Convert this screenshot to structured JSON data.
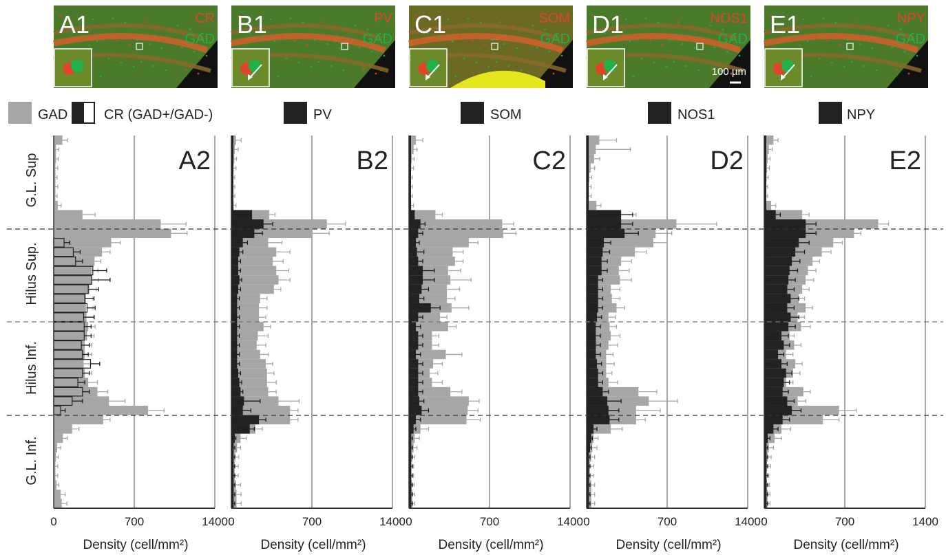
{
  "legend": {
    "gad": "GAD",
    "cr": "CR (GAD+/GAD-)",
    "pv": "PV",
    "som": "SOM",
    "nos1": "NOS1",
    "npy": "NPY"
  },
  "colors": {
    "gad": "#a6a6a6",
    "marker": "#222222",
    "marker_error": "#1a1a1a",
    "gad_error": "#a6a6a6",
    "micro_red": "#e0452a",
    "micro_green": "#1fb14a",
    "micro_yellow": "#e6e61e"
  },
  "region_labels": [
    "G.L. Sup",
    "Hilus Sup.",
    "Hilus Inf.",
    "G.L. Inf."
  ],
  "micrographs": [
    {
      "label": "A1",
      "marker": "CR",
      "counter": "GAD"
    },
    {
      "label": "B1",
      "marker": "PV",
      "counter": "GAD"
    },
    {
      "label": "C1",
      "marker": "SOM",
      "counter": "GAD"
    },
    {
      "label": "D1",
      "marker": "NOS1",
      "counter": "GAD",
      "scale": "100 µm"
    },
    {
      "label": "E1",
      "marker": "NPY",
      "counter": "GAD"
    }
  ],
  "chart_data": [
    {
      "type": "bar",
      "orientation": "horizontal",
      "panel": "A2",
      "xlabel": "Density (cell/mm²)",
      "xlim": [
        0,
        1400
      ],
      "xticks": [
        0,
        700,
        1400
      ],
      "series": [
        {
          "name": "GAD",
          "values": [
            75,
            20,
            20,
            15,
            15,
            15,
            15,
            35,
            250,
            930,
            1020,
            500,
            420,
            355,
            330,
            330,
            310,
            280,
            280,
            285,
            300,
            290,
            270,
            270,
            260,
            270,
            300,
            380,
            480,
            820,
            430,
            160,
            80,
            30,
            20,
            15,
            15,
            25,
            60,
            70
          ],
          "errors": [
            45,
            25,
            20,
            20,
            15,
            20,
            15,
            30,
            110,
            220,
            140,
            80,
            70,
            55,
            55,
            60,
            60,
            60,
            60,
            70,
            60,
            60,
            60,
            60,
            60,
            60,
            80,
            90,
            140,
            140,
            60,
            60,
            40,
            30,
            20,
            20,
            20,
            20,
            40,
            45
          ]
        },
        {
          "name": "CR (GAD+/GAD-)",
          "values": [
            0,
            0,
            0,
            0,
            0,
            0,
            0,
            0,
            0,
            0,
            0,
            90,
            170,
            190,
            340,
            330,
            300,
            270,
            290,
            260,
            265,
            265,
            240,
            250,
            320,
            250,
            210,
            250,
            160,
            60,
            0,
            0,
            0,
            0,
            0,
            0,
            0,
            0,
            0,
            0
          ],
          "errors": [
            0,
            0,
            0,
            0,
            0,
            0,
            0,
            0,
            0,
            0,
            0,
            50,
            60,
            60,
            120,
            160,
            90,
            80,
            70,
            90,
            60,
            60,
            70,
            50,
            80,
            60,
            60,
            60,
            90,
            40,
            0,
            0,
            0,
            0,
            0,
            0,
            0,
            0,
            0,
            0
          ]
        }
      ]
    },
    {
      "type": "bar",
      "orientation": "horizontal",
      "panel": "B2",
      "xlabel": "Density (cell/mm²)",
      "xlim": [
        0,
        1400
      ],
      "xticks": [
        0,
        700,
        1400
      ],
      "series": [
        {
          "name": "GAD",
          "values": [
            40,
            30,
            25,
            20,
            15,
            15,
            15,
            20,
            330,
            830,
            700,
            320,
            390,
            360,
            390,
            410,
            370,
            250,
            240,
            240,
            280,
            230,
            220,
            250,
            300,
            310,
            310,
            320,
            410,
            510,
            510,
            210,
            80,
            50,
            35,
            30,
            30,
            40,
            45,
            45
          ],
          "errors": [
            45,
            30,
            20,
            20,
            15,
            15,
            15,
            20,
            50,
            160,
            150,
            120,
            120,
            90,
            110,
            100,
            60,
            60,
            70,
            60,
            60,
            90,
            80,
            70,
            60,
            60,
            80,
            70,
            180,
            70,
            70,
            60,
            50,
            30,
            30,
            30,
            30,
            40,
            40,
            40
          ]
        },
        {
          "name": "PV",
          "values": [
            0,
            0,
            0,
            0,
            0,
            0,
            0,
            0,
            180,
            280,
            200,
            100,
            70,
            60,
            60,
            70,
            60,
            50,
            50,
            50,
            50,
            50,
            50,
            50,
            50,
            60,
            70,
            80,
            110,
            100,
            240,
            160,
            30,
            20,
            20,
            20,
            20,
            20,
            20,
            20
          ],
          "errors": [
            0,
            0,
            0,
            0,
            0,
            0,
            0,
            0,
            0,
            80,
            70,
            40,
            30,
            20,
            20,
            20,
            20,
            20,
            20,
            20,
            20,
            20,
            20,
            20,
            20,
            20,
            20,
            20,
            140,
            70,
            60,
            40,
            10,
            10,
            10,
            10,
            10,
            10,
            10,
            10
          ]
        }
      ]
    },
    {
      "type": "bar",
      "orientation": "horizontal",
      "panel": "C2",
      "xlabel": "Density (cell/mm²)",
      "xlim": [
        0,
        1400
      ],
      "xticks": [
        0,
        700,
        1400
      ],
      "series": [
        {
          "name": "GAD",
          "values": [
            60,
            40,
            25,
            20,
            15,
            15,
            15,
            20,
            230,
            810,
            820,
            520,
            380,
            400,
            340,
            360,
            330,
            330,
            370,
            270,
            340,
            200,
            200,
            320,
            210,
            180,
            200,
            360,
            520,
            510,
            500,
            100,
            50,
            40,
            30,
            20,
            20,
            25,
            30,
            30
          ],
          "errors": [
            60,
            30,
            20,
            20,
            15,
            15,
            15,
            20,
            60,
            100,
            110,
            80,
            90,
            70,
            110,
            180,
            110,
            70,
            150,
            60,
            70,
            60,
            60,
            140,
            80,
            70,
            90,
            100,
            90,
            90,
            120,
            70,
            40,
            30,
            20,
            20,
            20,
            20,
            20,
            20
          ]
        },
        {
          "name": "SOM",
          "values": [
            0,
            0,
            0,
            0,
            0,
            0,
            0,
            0,
            50,
            100,
            80,
            60,
            70,
            80,
            120,
            120,
            110,
            90,
            190,
            80,
            60,
            80,
            80,
            60,
            80,
            80,
            80,
            80,
            90,
            110,
            60,
            40,
            20,
            20,
            20,
            20,
            20,
            20,
            20,
            20
          ],
          "errors": [
            0,
            0,
            0,
            0,
            0,
            0,
            0,
            0,
            0,
            40,
            40,
            30,
            60,
            40,
            100,
            100,
            60,
            40,
            80,
            40,
            40,
            40,
            40,
            40,
            40,
            40,
            40,
            40,
            40,
            60,
            40,
            20,
            10,
            10,
            10,
            10,
            10,
            10,
            10,
            10
          ]
        }
      ]
    },
    {
      "type": "bar",
      "orientation": "horizontal",
      "panel": "D2",
      "xlabel": "Density (cell/mm²)",
      "xlim": [
        0,
        1400
      ],
      "xticks": [
        0,
        700,
        1400
      ],
      "series": [
        {
          "name": "GAD",
          "values": [
            110,
            80,
            65,
            35,
            25,
            20,
            20,
            85,
            290,
            780,
            600,
            580,
            420,
            300,
            280,
            290,
            210,
            220,
            260,
            190,
            200,
            210,
            190,
            170,
            170,
            170,
            190,
            450,
            540,
            430,
            430,
            210,
            60,
            50,
            40,
            30,
            30,
            40,
            40,
            40
          ],
          "errors": [
            150,
            300,
            50,
            35,
            20,
            20,
            20,
            40,
            140,
            350,
            140,
            120,
            100,
            90,
            90,
            100,
            80,
            70,
            70,
            60,
            60,
            80,
            80,
            60,
            70,
            50,
            80,
            160,
            250,
            210,
            80,
            100,
            40,
            40,
            30,
            30,
            30,
            30,
            30,
            30
          ]
        },
        {
          "name": "NOS1",
          "values": [
            0,
            0,
            0,
            0,
            0,
            0,
            0,
            0,
            300,
            300,
            330,
            150,
            140,
            130,
            130,
            100,
            100,
            100,
            100,
            90,
            80,
            80,
            80,
            80,
            90,
            100,
            100,
            140,
            180,
            190,
            200,
            60,
            40,
            30,
            20,
            20,
            20,
            20,
            20,
            20
          ],
          "errors": [
            0,
            80,
            0,
            0,
            0,
            0,
            0,
            0,
            100,
            100,
            120,
            60,
            60,
            50,
            50,
            40,
            40,
            40,
            40,
            40,
            40,
            40,
            40,
            40,
            40,
            40,
            40,
            50,
            120,
            90,
            80,
            30,
            10,
            10,
            10,
            10,
            10,
            10,
            10,
            10
          ]
        }
      ]
    },
    {
      "type": "bar",
      "orientation": "horizontal",
      "panel": "E2",
      "xlabel": "Density (cell/mm²)",
      "xlim": [
        0,
        1400
      ],
      "xticks": [
        0,
        700,
        1400
      ],
      "series": [
        {
          "name": "GAD",
          "values": [
            80,
            40,
            30,
            25,
            20,
            15,
            15,
            60,
            330,
            990,
            780,
            600,
            500,
            420,
            380,
            360,
            330,
            300,
            360,
            290,
            320,
            220,
            260,
            190,
            270,
            250,
            190,
            340,
            290,
            650,
            510,
            150,
            90,
            40,
            30,
            25,
            20,
            25,
            30,
            30
          ],
          "errors": [
            40,
            30,
            20,
            20,
            15,
            15,
            15,
            40,
            60,
            90,
            60,
            80,
            80,
            60,
            70,
            70,
            60,
            50,
            60,
            60,
            80,
            40,
            60,
            60,
            60,
            60,
            60,
            60,
            70,
            150,
            140,
            80,
            60,
            40,
            30,
            30,
            20,
            20,
            20,
            20
          ]
        },
        {
          "name": "NPY",
          "values": [
            0,
            0,
            0,
            0,
            0,
            0,
            0,
            0,
            100,
            360,
            360,
            300,
            270,
            240,
            220,
            210,
            200,
            230,
            200,
            230,
            210,
            150,
            170,
            120,
            150,
            190,
            170,
            160,
            200,
            240,
            160,
            80,
            30,
            20,
            20,
            20,
            20,
            20,
            20,
            20
          ],
          "errors": [
            0,
            0,
            0,
            0,
            0,
            0,
            0,
            0,
            40,
            90,
            90,
            90,
            80,
            70,
            70,
            60,
            60,
            70,
            60,
            70,
            60,
            60,
            50,
            50,
            50,
            50,
            50,
            50,
            60,
            80,
            60,
            40,
            20,
            10,
            10,
            10,
            10,
            10,
            10,
            10
          ]
        }
      ]
    }
  ]
}
